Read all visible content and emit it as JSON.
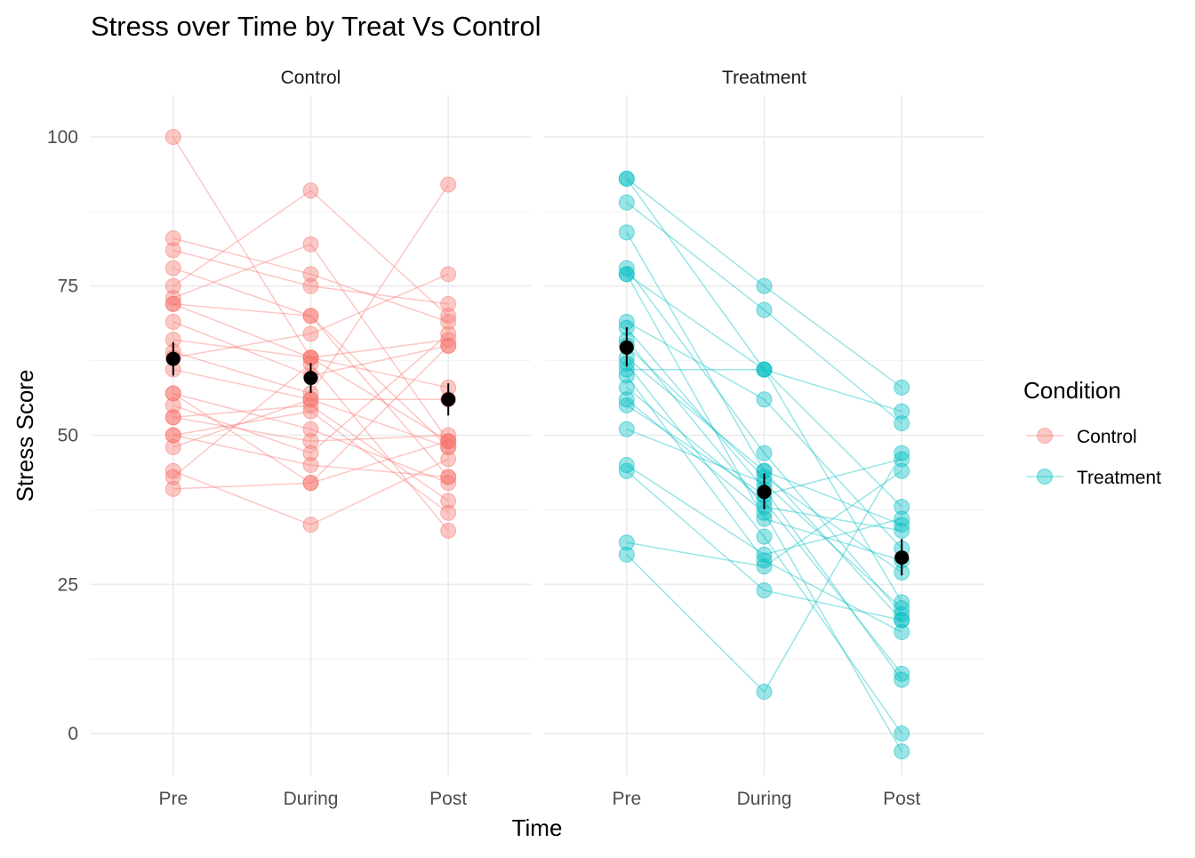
{
  "chart_data": {
    "type": "line",
    "title": "Stress over Time by Treat Vs Control",
    "xlabel": "Time",
    "ylabel": "Stress Score",
    "ylim": [
      -7,
      107
    ],
    "yticks": [
      0,
      25,
      50,
      75,
      100
    ],
    "categories": [
      "Pre",
      "During",
      "Post"
    ],
    "legend": {
      "title": "Condition",
      "placement": "right",
      "entries": [
        {
          "label": "Control",
          "color": "#F8766D"
        },
        {
          "label": "Treatment",
          "color": "#00BFC4"
        }
      ]
    },
    "grid": true,
    "panels": [
      {
        "name": "Control",
        "color": "#F8766D",
        "subjects": [
          [
            100,
            63,
            58
          ],
          [
            83,
            77,
            69
          ],
          [
            81,
            75,
            72
          ],
          [
            78,
            70,
            48
          ],
          [
            75,
            91,
            70
          ],
          [
            73,
            82,
            49
          ],
          [
            72,
            63,
            66
          ],
          [
            72,
            70,
            43
          ],
          [
            69,
            60,
            65
          ],
          [
            66,
            63,
            49
          ],
          [
            64,
            57,
            92
          ],
          [
            63,
            67,
            77
          ],
          [
            61,
            56,
            48
          ],
          [
            57,
            42,
            65
          ],
          [
            57,
            51,
            42
          ],
          [
            55,
            47,
            67
          ],
          [
            53,
            55,
            39
          ],
          [
            53,
            49,
            50
          ],
          [
            50,
            45,
            43
          ],
          [
            50,
            54,
            37
          ],
          [
            48,
            56,
            56
          ],
          [
            44,
            35,
            46
          ],
          [
            43,
            62,
            34
          ],
          [
            41,
            42,
            49
          ]
        ],
        "means": [
          62.8,
          59.6,
          56.0
        ],
        "ci": [
          [
            60.0,
            65.6
          ],
          [
            57.1,
            62.1
          ],
          [
            53.3,
            58.7
          ]
        ]
      },
      {
        "name": "Treatment",
        "color": "#00BFC4",
        "subjects": [
          [
            93,
            75,
            58
          ],
          [
            93,
            61,
            54
          ],
          [
            89,
            71,
            52
          ],
          [
            84,
            44,
            35
          ],
          [
            78,
            47,
            20
          ],
          [
            77,
            61,
            38
          ],
          [
            77,
            36,
            29
          ],
          [
            69,
            56,
            31
          ],
          [
            68,
            41,
            9
          ],
          [
            66,
            38,
            34
          ],
          [
            65,
            43,
            27
          ],
          [
            63,
            44,
            19
          ],
          [
            62,
            33,
            0
          ],
          [
            61,
            61,
            22
          ],
          [
            60,
            29,
            17
          ],
          [
            58,
            39,
            10
          ],
          [
            56,
            37,
            -3
          ],
          [
            55,
            40,
            46
          ],
          [
            51,
            42,
            21
          ],
          [
            45,
            30,
            36
          ],
          [
            44,
            24,
            19
          ],
          [
            32,
            28,
            44
          ],
          [
            30,
            7,
            47
          ]
        ],
        "means": [
          64.7,
          40.5,
          29.5
        ],
        "ci": [
          [
            61.5,
            68.1
          ],
          [
            37.6,
            43.6
          ],
          [
            26.5,
            32.6
          ]
        ]
      }
    ]
  }
}
